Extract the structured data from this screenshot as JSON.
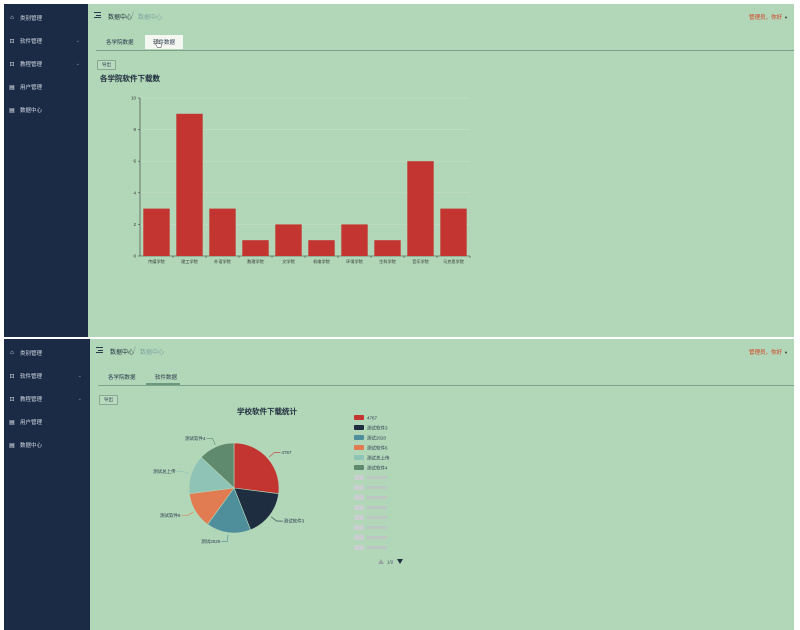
{
  "sidebar": {
    "items": [
      {
        "label": "类别管理",
        "icon": "home-icon",
        "has_children": false
      },
      {
        "label": "软件管理",
        "icon": "plus-box-icon",
        "has_children": true
      },
      {
        "label": "教程管理",
        "icon": "plus-box-icon",
        "has_children": true
      },
      {
        "label": "用户管理",
        "icon": "document-icon",
        "has_children": false
      },
      {
        "label": "数据中心",
        "icon": "document-icon",
        "has_children": false
      }
    ]
  },
  "header": {
    "breadcrumb_current": "数据中心",
    "breadcrumb_sub": "数据中心",
    "user_greeting": "管理员，你好"
  },
  "tabs": [
    {
      "label": "各学院数据"
    },
    {
      "label": "软件数据"
    }
  ],
  "export_label": "导出",
  "colors": {
    "sidebar_bg": "#1c2b45",
    "page_bg": "#b2d7b8",
    "bar": "#c23531",
    "accent_red": "#d33a1f"
  },
  "bar_chart": {
    "chart_data": {
      "type": "bar",
      "title": "各学院软件下载数",
      "categories": [
        "传媒学院",
        "理工学院",
        "外语学院",
        "数理学院",
        "文学院",
        "机电学院",
        "环境学院",
        "生科学院",
        "音乐学院",
        "马克思学院"
      ],
      "values": [
        3,
        9,
        3,
        1,
        2,
        1,
        2,
        1,
        6,
        3
      ],
      "ylim": [
        0,
        10
      ],
      "yticks": [
        0,
        2,
        4,
        6,
        8,
        10
      ],
      "grid": true,
      "xlabel": "",
      "ylabel": ""
    }
  },
  "pie_chart": {
    "chart_data": {
      "type": "pie",
      "title": "学校软件下载统计",
      "slices": [
        {
          "name": "4767",
          "value": 27,
          "color": "#c23531"
        },
        {
          "name": "测试软件3",
          "value": 17,
          "color": "#1f2d40"
        },
        {
          "name": "测试2020",
          "value": 16,
          "color": "#4f8f9c"
        },
        {
          "name": "测试软件6",
          "value": 13,
          "color": "#e07b52"
        },
        {
          "name": "测试总上传",
          "value": 14,
          "color": "#8fc3b5"
        },
        {
          "name": "测试软件4",
          "value": 13,
          "color": "#5f8a6e"
        }
      ],
      "legend": {
        "position": "right",
        "faded_count": 8,
        "page": "1/2"
      }
    }
  }
}
